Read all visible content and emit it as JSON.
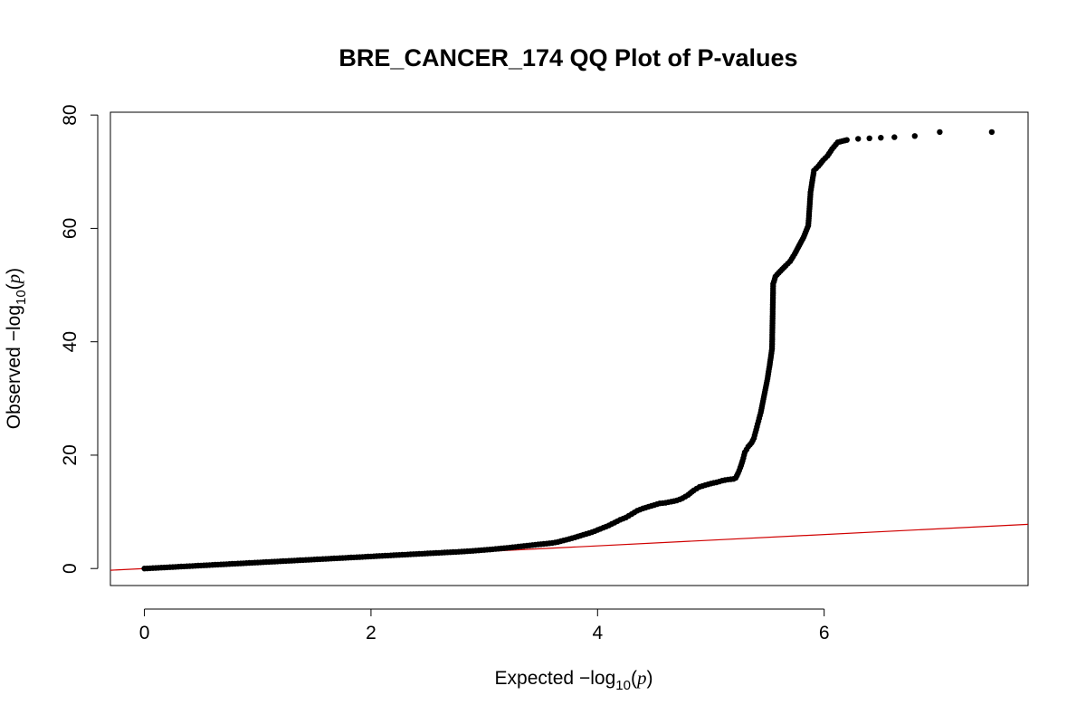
{
  "chart_data": {
    "type": "scatter",
    "title": "BRE_CANCER_174 QQ Plot of P-values",
    "xlabel": {
      "prefix": "Expected ",
      "minus": "−",
      "log": "log",
      "sub": "10",
      "arg_open": "(",
      "arg": "p",
      "arg_close": ")"
    },
    "ylabel": {
      "prefix": "Observed ",
      "minus": "−",
      "log": "log",
      "sub": "10",
      "arg_open": "(",
      "arg": "p",
      "arg_close": ")"
    },
    "xlim": [
      -0.3,
      7.8
    ],
    "ylim": [
      -3,
      80.5
    ],
    "x_ticks": [
      0,
      2,
      4,
      6
    ],
    "x_tick_labels": [
      "0",
      "2",
      "4",
      "6"
    ],
    "y_ticks": [
      0,
      20,
      40,
      60,
      80
    ],
    "y_tick_labels": [
      "0",
      "20",
      "40",
      "60",
      "80"
    ],
    "grid": false,
    "reference_line": {
      "slope": 1,
      "intercept": 0,
      "color": "#d00000"
    },
    "point_color": "#000000",
    "points": [
      [
        0.0,
        0.0
      ],
      [
        0.05,
        0.05
      ],
      [
        0.1,
        0.1
      ],
      [
        0.15,
        0.16
      ],
      [
        0.2,
        0.21
      ],
      [
        0.25,
        0.26
      ],
      [
        0.3,
        0.32
      ],
      [
        0.35,
        0.37
      ],
      [
        0.4,
        0.42
      ],
      [
        0.45,
        0.48
      ],
      [
        0.5,
        0.53
      ],
      [
        0.55,
        0.58
      ],
      [
        0.6,
        0.64
      ],
      [
        0.65,
        0.69
      ],
      [
        0.7,
        0.74
      ],
      [
        0.75,
        0.8
      ],
      [
        0.8,
        0.85
      ],
      [
        0.85,
        0.9
      ],
      [
        0.9,
        0.96
      ],
      [
        0.95,
        1.01
      ],
      [
        1.0,
        1.06
      ],
      [
        1.05,
        1.12
      ],
      [
        1.1,
        1.17
      ],
      [
        1.15,
        1.22
      ],
      [
        1.2,
        1.28
      ],
      [
        1.25,
        1.33
      ],
      [
        1.3,
        1.38
      ],
      [
        1.35,
        1.44
      ],
      [
        1.4,
        1.49
      ],
      [
        1.45,
        1.54
      ],
      [
        1.5,
        1.6
      ],
      [
        1.55,
        1.65
      ],
      [
        1.6,
        1.7
      ],
      [
        1.65,
        1.76
      ],
      [
        1.7,
        1.81
      ],
      [
        1.75,
        1.86
      ],
      [
        1.8,
        1.92
      ],
      [
        1.85,
        1.97
      ],
      [
        1.9,
        2.02
      ],
      [
        1.95,
        2.08
      ],
      [
        2.0,
        2.13
      ],
      [
        2.05,
        2.19
      ],
      [
        2.1,
        2.24
      ],
      [
        2.15,
        2.29
      ],
      [
        2.2,
        2.35
      ],
      [
        2.25,
        2.4
      ],
      [
        2.3,
        2.45
      ],
      [
        2.35,
        2.51
      ],
      [
        2.4,
        2.56
      ],
      [
        2.45,
        2.61
      ],
      [
        2.5,
        2.67
      ],
      [
        2.55,
        2.72
      ],
      [
        2.6,
        2.77
      ],
      [
        2.65,
        2.83
      ],
      [
        2.7,
        2.88
      ],
      [
        2.75,
        2.93
      ],
      [
        2.8,
        2.99
      ],
      [
        2.85,
        3.05
      ],
      [
        2.9,
        3.12
      ],
      [
        2.95,
        3.2
      ],
      [
        3.0,
        3.28
      ],
      [
        3.05,
        3.36
      ],
      [
        3.1,
        3.45
      ],
      [
        3.15,
        3.54
      ],
      [
        3.2,
        3.64
      ],
      [
        3.25,
        3.75
      ],
      [
        3.3,
        3.86
      ],
      [
        3.35,
        3.97
      ],
      [
        3.4,
        4.08
      ],
      [
        3.45,
        4.19
      ],
      [
        3.5,
        4.3
      ],
      [
        3.55,
        4.4
      ],
      [
        3.6,
        4.5
      ],
      [
        3.65,
        4.7
      ],
      [
        3.7,
        4.95
      ],
      [
        3.75,
        5.2
      ],
      [
        3.8,
        5.5
      ],
      [
        3.85,
        5.8
      ],
      [
        3.9,
        6.1
      ],
      [
        3.95,
        6.4
      ],
      [
        4.0,
        6.8
      ],
      [
        4.05,
        7.2
      ],
      [
        4.1,
        7.6
      ],
      [
        4.15,
        8.1
      ],
      [
        4.2,
        8.6
      ],
      [
        4.25,
        9.0
      ],
      [
        4.3,
        9.6
      ],
      [
        4.35,
        10.2
      ],
      [
        4.4,
        10.6
      ],
      [
        4.45,
        10.9
      ],
      [
        4.5,
        11.2
      ],
      [
        4.55,
        11.5
      ],
      [
        4.6,
        11.6
      ],
      [
        4.65,
        11.8
      ],
      [
        4.7,
        12.0
      ],
      [
        4.75,
        12.4
      ],
      [
        4.8,
        13.0
      ],
      [
        4.85,
        13.8
      ],
      [
        4.9,
        14.4
      ],
      [
        4.95,
        14.7
      ],
      [
        5.0,
        15.0
      ],
      [
        5.05,
        15.2
      ],
      [
        5.1,
        15.5
      ],
      [
        5.15,
        15.7
      ],
      [
        5.2,
        15.8
      ],
      [
        5.22,
        16.0
      ],
      [
        5.24,
        16.8
      ],
      [
        5.26,
        17.8
      ],
      [
        5.28,
        19.0
      ],
      [
        5.3,
        20.5
      ],
      [
        5.33,
        21.5
      ],
      [
        5.36,
        22.2
      ],
      [
        5.38,
        23.0
      ],
      [
        5.4,
        24.5
      ],
      [
        5.42,
        26.0
      ],
      [
        5.44,
        27.5
      ],
      [
        5.46,
        29.5
      ],
      [
        5.48,
        31.5
      ],
      [
        5.5,
        33.5
      ],
      [
        5.52,
        36.0
      ],
      [
        5.54,
        38.8
      ],
      [
        5.55,
        50.2
      ],
      [
        5.57,
        51.5
      ],
      [
        5.6,
        52.2
      ],
      [
        5.63,
        52.8
      ],
      [
        5.66,
        53.4
      ],
      [
        5.7,
        54.2
      ],
      [
        5.74,
        55.5
      ],
      [
        5.78,
        57.0
      ],
      [
        5.82,
        58.5
      ],
      [
        5.86,
        60.5
      ],
      [
        5.88,
        66.4
      ],
      [
        5.91,
        70.2
      ],
      [
        5.95,
        71.0
      ],
      [
        5.99,
        72.0
      ],
      [
        6.03,
        72.8
      ],
      [
        6.07,
        74.0
      ],
      [
        6.12,
        75.2
      ],
      [
        6.2,
        75.6
      ],
      [
        6.3,
        75.8
      ],
      [
        6.4,
        75.9
      ],
      [
        6.5,
        76.0
      ],
      [
        6.62,
        76.1
      ],
      [
        6.8,
        76.3
      ],
      [
        7.02,
        77.0
      ],
      [
        7.48,
        77.0
      ]
    ]
  }
}
